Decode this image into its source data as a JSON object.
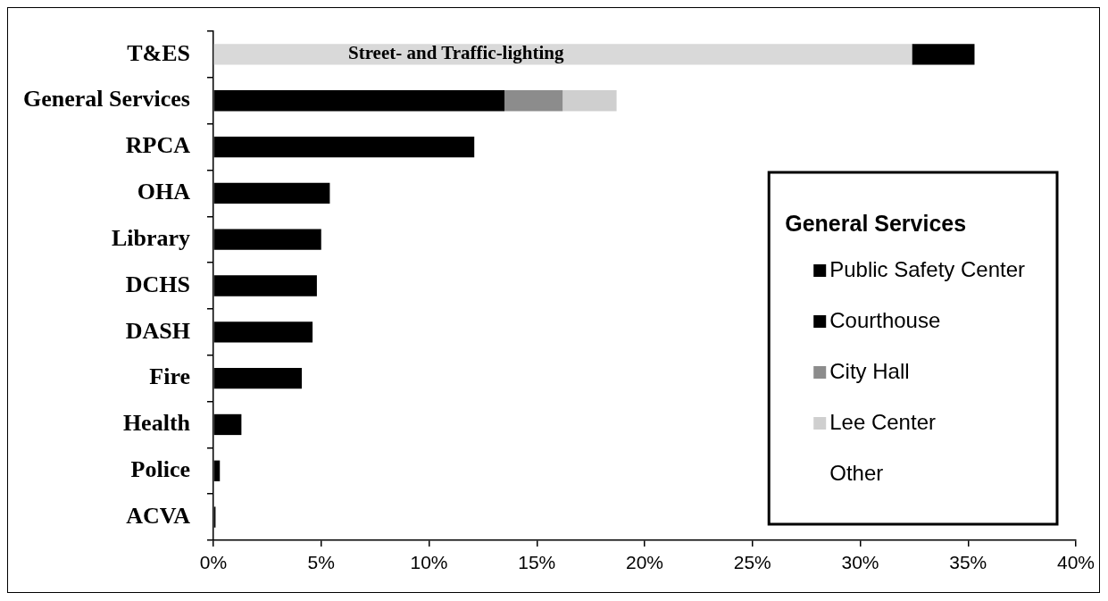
{
  "chart_data": {
    "type": "bar",
    "orientation": "horizontal",
    "stacked": true,
    "categories": [
      "T&ES",
      "General Services",
      "RPCA",
      "OHA",
      "Library",
      "DCHS",
      "DASH",
      "Fire",
      "Health",
      "Police",
      "ACVA"
    ],
    "series": [
      {
        "color": "#d9d9d9",
        "values": [
          32.4,
          null,
          null,
          null,
          null,
          null,
          null,
          null,
          null,
          null,
          null
        ]
      },
      {
        "color": "#000000",
        "values": [
          2.9,
          null,
          12.1,
          5.4,
          5.0,
          4.8,
          4.6,
          4.1,
          1.3,
          0.3,
          0.1
        ]
      },
      {
        "name": "Public Safety Center",
        "color": "#000000",
        "values": [
          null,
          13.5,
          null,
          null,
          null,
          null,
          null,
          null,
          null,
          null,
          null
        ]
      },
      {
        "name": "Courthouse",
        "color": "#000000",
        "values": [
          null,
          null,
          null,
          null,
          null,
          null,
          null,
          null,
          null,
          null,
          null
        ]
      },
      {
        "name": "City Hall",
        "color": "#8c8c8c",
        "values": [
          null,
          2.7,
          null,
          null,
          null,
          null,
          null,
          null,
          null,
          null,
          null
        ]
      },
      {
        "name": "Lee Center",
        "color": "#cfcfcf",
        "values": [
          null,
          2.5,
          null,
          null,
          null,
          null,
          null,
          null,
          null,
          null,
          null
        ]
      },
      {
        "name": "Other",
        "values": [
          null,
          null,
          null,
          null,
          null,
          null,
          null,
          null,
          null,
          null,
          null
        ]
      }
    ],
    "xlim": [
      0,
      40
    ],
    "xticks": [
      {
        "value": 0,
        "label": "0%"
      },
      {
        "value": 5,
        "label": "5%"
      },
      {
        "value": 10,
        "label": "10%"
      },
      {
        "value": 15,
        "label": "15%"
      },
      {
        "value": 20,
        "label": "20%"
      },
      {
        "value": 25,
        "label": "25%"
      },
      {
        "value": 30,
        "label": "30%"
      },
      {
        "value": 35,
        "label": "35%"
      },
      {
        "value": 40,
        "label": "40%"
      }
    ],
    "grid": false,
    "legend": "bottom right",
    "legend_title": "General Services",
    "annotations": [
      "Street- and Traffic-lighting"
    ]
  }
}
